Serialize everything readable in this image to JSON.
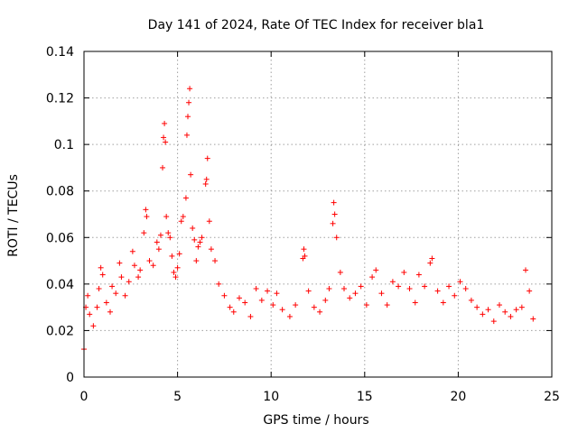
{
  "chart_data": {
    "type": "scatter",
    "title": "Day 141 of 2024, Rate Of TEC Index for receiver bla1",
    "xlabel": "GPS time / hours",
    "ylabel": "ROTI / TECUs",
    "xlim": [
      0,
      25
    ],
    "ylim": [
      0,
      0.14
    ],
    "xticks": [
      "0",
      "5",
      "10",
      "15",
      "20",
      "25"
    ],
    "yticks": [
      "0",
      "0.02",
      "0.04",
      "0.06",
      "0.08",
      "0.1",
      "0.12",
      "0.14"
    ],
    "grid": true,
    "marker": "plus",
    "color": "#ff0000",
    "series": [
      {
        "values": [
          [
            0.0,
            0.012
          ],
          [
            0.1,
            0.03
          ],
          [
            0.2,
            0.035
          ],
          [
            0.3,
            0.027
          ],
          [
            0.5,
            0.022
          ],
          [
            0.7,
            0.03
          ],
          [
            0.8,
            0.038
          ],
          [
            0.9,
            0.047
          ],
          [
            1.0,
            0.044
          ],
          [
            1.2,
            0.032
          ],
          [
            1.4,
            0.028
          ],
          [
            1.5,
            0.039
          ],
          [
            1.7,
            0.036
          ],
          [
            1.9,
            0.049
          ],
          [
            2.0,
            0.043
          ],
          [
            2.2,
            0.035
          ],
          [
            2.4,
            0.041
          ],
          [
            2.6,
            0.054
          ],
          [
            2.7,
            0.048
          ],
          [
            2.9,
            0.043
          ],
          [
            3.0,
            0.046
          ],
          [
            3.2,
            0.062
          ],
          [
            3.3,
            0.072
          ],
          [
            3.35,
            0.069
          ],
          [
            3.5,
            0.05
          ],
          [
            3.7,
            0.048
          ],
          [
            3.9,
            0.058
          ],
          [
            4.0,
            0.055
          ],
          [
            4.1,
            0.061
          ],
          [
            4.2,
            0.09
          ],
          [
            4.25,
            0.103
          ],
          [
            4.3,
            0.109
          ],
          [
            4.35,
            0.101
          ],
          [
            4.4,
            0.069
          ],
          [
            4.5,
            0.062
          ],
          [
            4.6,
            0.06
          ],
          [
            4.7,
            0.052
          ],
          [
            4.8,
            0.045
          ],
          [
            4.9,
            0.043
          ],
          [
            5.0,
            0.047
          ],
          [
            5.1,
            0.053
          ],
          [
            5.2,
            0.067
          ],
          [
            5.3,
            0.069
          ],
          [
            5.45,
            0.077
          ],
          [
            5.5,
            0.104
          ],
          [
            5.55,
            0.112
          ],
          [
            5.6,
            0.118
          ],
          [
            5.65,
            0.124
          ],
          [
            5.7,
            0.087
          ],
          [
            5.8,
            0.064
          ],
          [
            5.9,
            0.059
          ],
          [
            6.0,
            0.05
          ],
          [
            6.1,
            0.056
          ],
          [
            6.2,
            0.058
          ],
          [
            6.3,
            0.06
          ],
          [
            6.5,
            0.083
          ],
          [
            6.55,
            0.085
          ],
          [
            6.6,
            0.094
          ],
          [
            6.7,
            0.067
          ],
          [
            6.8,
            0.055
          ],
          [
            7.0,
            0.05
          ],
          [
            7.2,
            0.04
          ],
          [
            7.5,
            0.035
          ],
          [
            7.8,
            0.03
          ],
          [
            8.0,
            0.028
          ],
          [
            8.3,
            0.034
          ],
          [
            8.6,
            0.032
          ],
          [
            8.9,
            0.026
          ],
          [
            9.2,
            0.038
          ],
          [
            9.5,
            0.033
          ],
          [
            9.8,
            0.037
          ],
          [
            10.1,
            0.031
          ],
          [
            10.3,
            0.036
          ],
          [
            10.6,
            0.029
          ],
          [
            11.0,
            0.026
          ],
          [
            11.3,
            0.031
          ],
          [
            11.7,
            0.051
          ],
          [
            11.75,
            0.055
          ],
          [
            11.8,
            0.052
          ],
          [
            12.0,
            0.037
          ],
          [
            12.3,
            0.03
          ],
          [
            12.6,
            0.028
          ],
          [
            12.9,
            0.033
          ],
          [
            13.1,
            0.038
          ],
          [
            13.3,
            0.066
          ],
          [
            13.35,
            0.075
          ],
          [
            13.4,
            0.07
          ],
          [
            13.5,
            0.06
          ],
          [
            13.7,
            0.045
          ],
          [
            13.9,
            0.038
          ],
          [
            14.2,
            0.034
          ],
          [
            14.5,
            0.036
          ],
          [
            14.8,
            0.039
          ],
          [
            15.1,
            0.031
          ],
          [
            15.4,
            0.043
          ],
          [
            15.6,
            0.046
          ],
          [
            15.9,
            0.036
          ],
          [
            16.2,
            0.031
          ],
          [
            16.5,
            0.041
          ],
          [
            16.8,
            0.039
          ],
          [
            17.1,
            0.045
          ],
          [
            17.4,
            0.038
          ],
          [
            17.7,
            0.032
          ],
          [
            17.9,
            0.044
          ],
          [
            18.2,
            0.039
          ],
          [
            18.5,
            0.049
          ],
          [
            18.6,
            0.051
          ],
          [
            18.9,
            0.037
          ],
          [
            19.2,
            0.032
          ],
          [
            19.5,
            0.039
          ],
          [
            19.8,
            0.035
          ],
          [
            20.1,
            0.041
          ],
          [
            20.4,
            0.038
          ],
          [
            20.7,
            0.033
          ],
          [
            21.0,
            0.03
          ],
          [
            21.3,
            0.027
          ],
          [
            21.6,
            0.029
          ],
          [
            21.9,
            0.024
          ],
          [
            22.2,
            0.031
          ],
          [
            22.5,
            0.028
          ],
          [
            22.8,
            0.026
          ],
          [
            23.1,
            0.029
          ],
          [
            23.4,
            0.03
          ],
          [
            23.6,
            0.046
          ],
          [
            23.8,
            0.037
          ],
          [
            24.0,
            0.025
          ]
        ]
      }
    ]
  }
}
